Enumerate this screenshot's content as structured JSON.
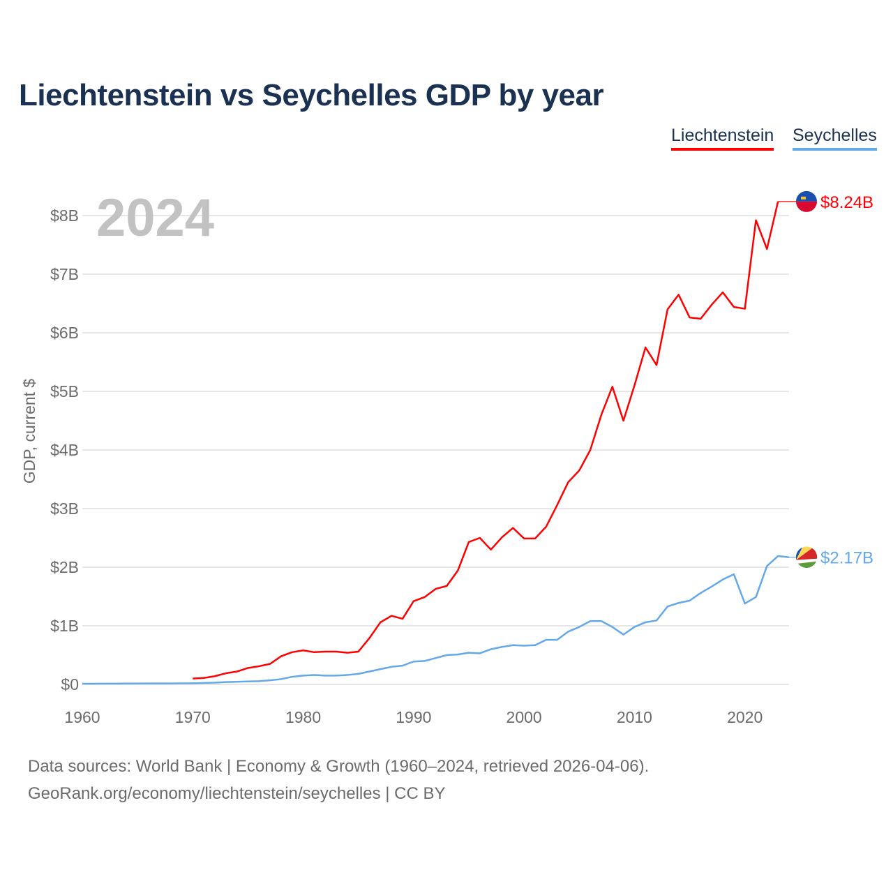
{
  "chart_data": {
    "type": "line",
    "title": "Liechtenstein vs Seychelles GDP by year",
    "ylabel": "GDP, current $",
    "xlabel": "",
    "year_label": "2024",
    "xlim": [
      1960,
      2024
    ],
    "ylim": [
      0,
      8.5
    ],
    "x_ticks": [
      1960,
      1970,
      1980,
      1990,
      2000,
      2010,
      2020
    ],
    "x_tick_labels": [
      "1960",
      "1970",
      "1980",
      "1990",
      "2000",
      "2010",
      "2020"
    ],
    "y_ticks": [
      0,
      1,
      2,
      3,
      4,
      5,
      6,
      7,
      8
    ],
    "y_tick_labels": [
      "$0",
      "$1B",
      "$2B",
      "$3B",
      "$4B",
      "$5B",
      "$6B",
      "$7B",
      "$8B"
    ],
    "grid": true,
    "legend_position": "top-right",
    "series": [
      {
        "name": "Liechtenstein",
        "color": "#ff0000",
        "end_label": "$8.24B",
        "flag": "liechtenstein-flag",
        "x_start": 1970,
        "values": [
          0.1,
          0.11,
          0.14,
          0.19,
          0.22,
          0.28,
          0.31,
          0.35,
          0.48,
          0.55,
          0.58,
          0.55,
          0.56,
          0.56,
          0.54,
          0.56,
          0.79,
          1.06,
          1.17,
          1.12,
          1.42,
          1.49,
          1.63,
          1.68,
          1.94,
          2.43,
          2.5,
          2.3,
          2.51,
          2.67,
          2.49,
          2.49,
          2.69,
          3.06,
          3.45,
          3.65,
          4.0,
          4.6,
          5.08,
          4.5,
          5.1,
          5.75,
          5.45,
          6.4,
          6.65,
          6.26,
          6.24,
          6.48,
          6.69,
          6.44,
          6.41,
          7.92,
          7.43,
          8.24
        ]
      },
      {
        "name": "Seychelles",
        "color": "#63a8ea",
        "end_label": "$2.17B",
        "flag": "seychelles-flag",
        "x_start": 1960,
        "values": [
          0.012,
          0.012,
          0.013,
          0.014,
          0.015,
          0.015,
          0.016,
          0.017,
          0.016,
          0.018,
          0.02,
          0.025,
          0.03,
          0.04,
          0.045,
          0.05,
          0.055,
          0.07,
          0.09,
          0.13,
          0.15,
          0.16,
          0.15,
          0.15,
          0.16,
          0.18,
          0.22,
          0.26,
          0.3,
          0.32,
          0.39,
          0.4,
          0.45,
          0.5,
          0.51,
          0.54,
          0.53,
          0.6,
          0.64,
          0.67,
          0.66,
          0.67,
          0.76,
          0.76,
          0.9,
          0.98,
          1.08,
          1.08,
          0.98,
          0.85,
          0.98,
          1.06,
          1.09,
          1.33,
          1.39,
          1.43,
          1.56,
          1.67,
          1.79,
          1.88,
          1.38,
          1.49,
          2.02,
          2.19,
          2.17
        ]
      }
    ]
  },
  "legend": {
    "items": [
      "Liechtenstein",
      "Seychelles"
    ]
  },
  "footer": {
    "line1": "Data sources: World Bank | Economy & Growth (1960–2024, retrieved 2026-04-06).",
    "line2": "GeoRank.org/economy/liechtenstein/seychelles | CC BY"
  }
}
